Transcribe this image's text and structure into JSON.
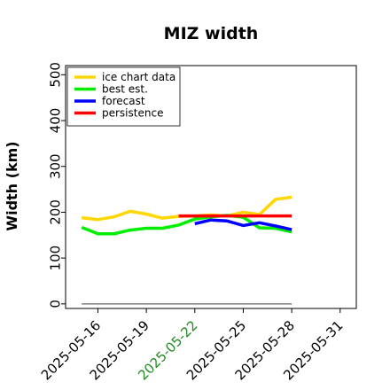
{
  "chart_data": {
    "type": "line",
    "title": "MIZ width",
    "xlabel": "",
    "ylabel": "Width (km)",
    "ylim": [
      -10,
      520
    ],
    "xlim": [
      "2025-05-14",
      "2025-06-01"
    ],
    "y_ticks": [
      0,
      100,
      200,
      300,
      400,
      500
    ],
    "x_ticks": [
      "2025-05-16",
      "2025-05-19",
      "2025-05-22",
      "2025-05-25",
      "2025-05-28",
      "2025-05-31"
    ],
    "highlight_tick": {
      "label": "2025-05-22",
      "color": "#228B22"
    },
    "grid": false,
    "legend": {
      "location": "upper left"
    },
    "series": [
      {
        "name": "ice chart data",
        "color": "#FFD700",
        "points": [
          [
            "2025-05-15",
            188
          ],
          [
            "2025-05-16",
            184
          ],
          [
            "2025-05-17",
            190
          ],
          [
            "2025-05-18",
            202
          ],
          [
            "2025-05-19",
            196
          ],
          [
            "2025-05-20",
            187
          ],
          [
            "2025-05-21",
            191
          ],
          [
            "2025-05-22",
            192
          ],
          [
            "2025-05-23",
            194
          ],
          [
            "2025-05-24",
            192
          ],
          [
            "2025-05-25",
            200
          ],
          [
            "2025-05-26",
            195
          ],
          [
            "2025-05-27",
            228
          ],
          [
            "2025-05-28",
            233
          ]
        ]
      },
      {
        "name": "best est.",
        "color": "#00EE00",
        "points": [
          [
            "2025-05-15",
            167
          ],
          [
            "2025-05-16",
            153
          ],
          [
            "2025-05-17",
            153
          ],
          [
            "2025-05-18",
            161
          ],
          [
            "2025-05-19",
            165
          ],
          [
            "2025-05-20",
            165
          ],
          [
            "2025-05-21",
            172
          ],
          [
            "2025-05-22",
            185
          ],
          [
            "2025-05-23",
            190
          ],
          [
            "2025-05-24",
            193
          ],
          [
            "2025-05-25",
            189
          ],
          [
            "2025-05-26",
            166
          ],
          [
            "2025-05-27",
            165
          ],
          [
            "2025-05-28",
            157
          ]
        ]
      },
      {
        "name": "forecast",
        "color": "#0000FF",
        "points": [
          [
            "2025-05-22",
            175
          ],
          [
            "2025-05-23",
            183
          ],
          [
            "2025-05-24",
            181
          ],
          [
            "2025-05-25",
            171
          ],
          [
            "2025-05-26",
            177
          ],
          [
            "2025-05-27",
            170
          ],
          [
            "2025-05-28",
            162
          ]
        ]
      },
      {
        "name": "persistence",
        "color": "#FF0000",
        "points": [
          [
            "2025-05-21",
            192
          ],
          [
            "2025-05-28",
            192
          ]
        ]
      }
    ],
    "baseline": {
      "color": "#808080",
      "points": [
        [
          "2025-05-15",
          0
        ],
        [
          "2025-05-28",
          0
        ]
      ]
    }
  }
}
